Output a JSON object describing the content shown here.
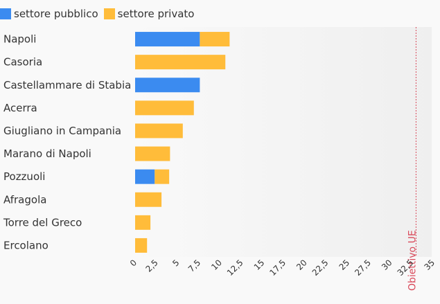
{
  "chart_data": {
    "type": "bar",
    "orientation": "horizontal",
    "stacked": true,
    "categories": [
      "Napoli",
      "Casoria",
      "Castellammare di Stabia",
      "Acerra",
      "Giugliano in Campania",
      "Marano di Napoli",
      "Pozzuoli",
      "Afragola",
      "Torre del Greco",
      "Ercolano"
    ],
    "series": [
      {
        "name": "settore pubblico",
        "color": "#3b8bf0",
        "values": [
          7.6,
          0,
          7.6,
          0,
          0,
          0,
          2.3,
          0,
          0,
          0
        ]
      },
      {
        "name": "settore privato",
        "color": "#ffbc3a",
        "values": [
          3.5,
          10.6,
          0,
          6.9,
          5.6,
          4.1,
          1.7,
          3.1,
          1.8,
          1.4
        ]
      }
    ],
    "xlim": [
      0,
      35
    ],
    "xticks": [
      "0",
      "2,5",
      "5",
      "7,5",
      "10",
      "12,5",
      "15",
      "17,5",
      "20",
      "22,5",
      "25",
      "27,5",
      "30",
      "32,5",
      "35"
    ],
    "reference_line": {
      "value": 33,
      "label": "Obiettivo UE",
      "color": "#d9495a"
    },
    "legend_position": "top-left",
    "grid": false
  }
}
